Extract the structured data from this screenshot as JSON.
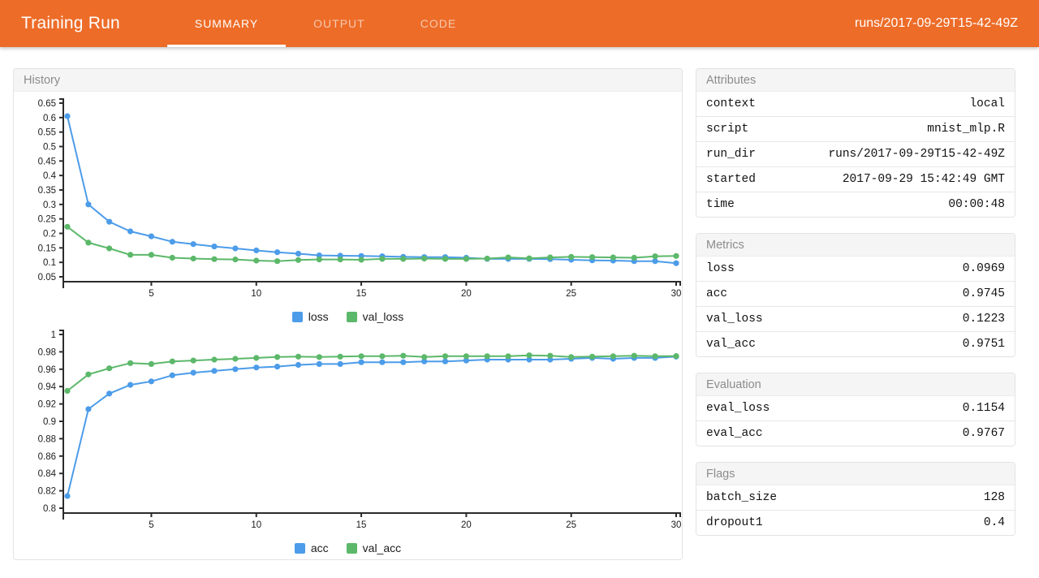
{
  "header": {
    "title": "Training Run",
    "tabs": [
      {
        "label": "SUMMARY",
        "active": true
      },
      {
        "label": "OUTPUT",
        "active": false
      },
      {
        "label": "CODE",
        "active": false
      }
    ],
    "run_label": "runs/2017-09-29T15-42-49Z",
    "accent_color": "#ED6C28"
  },
  "history": {
    "title": "History"
  },
  "chart_data": [
    {
      "type": "line",
      "x": [
        1,
        2,
        3,
        4,
        5,
        6,
        7,
        8,
        9,
        10,
        11,
        12,
        13,
        14,
        15,
        16,
        17,
        18,
        19,
        20,
        21,
        22,
        23,
        24,
        25,
        26,
        27,
        28,
        29,
        30
      ],
      "series": [
        {
          "name": "loss",
          "color": "#4C9CE9",
          "values": [
            0.605,
            0.3,
            0.24,
            0.207,
            0.19,
            0.171,
            0.163,
            0.155,
            0.148,
            0.141,
            0.135,
            0.13,
            0.124,
            0.123,
            0.122,
            0.121,
            0.119,
            0.118,
            0.118,
            0.116,
            0.112,
            0.112,
            0.112,
            0.111,
            0.109,
            0.107,
            0.106,
            0.104,
            0.104,
            0.097
          ]
        },
        {
          "name": "val_loss",
          "color": "#5CB86A",
          "values": [
            0.223,
            0.168,
            0.148,
            0.126,
            0.126,
            0.116,
            0.113,
            0.111,
            0.11,
            0.106,
            0.104,
            0.108,
            0.11,
            0.11,
            0.109,
            0.112,
            0.112,
            0.113,
            0.112,
            0.112,
            0.113,
            0.117,
            0.114,
            0.117,
            0.119,
            0.118,
            0.117,
            0.116,
            0.121,
            0.122
          ]
        }
      ],
      "title": "",
      "xlabel": "",
      "ylabel": "",
      "xlim": [
        1,
        30
      ],
      "ylim": [
        0.05,
        0.65
      ],
      "yticks": [
        0.05,
        0.1,
        0.15,
        0.2,
        0.25,
        0.3,
        0.35,
        0.4,
        0.45,
        0.5,
        0.55,
        0.6,
        0.65
      ],
      "xticks": [
        5,
        10,
        15,
        20,
        25,
        30
      ],
      "grid": false,
      "legend_position": "bottom"
    },
    {
      "type": "line",
      "x": [
        1,
        2,
        3,
        4,
        5,
        6,
        7,
        8,
        9,
        10,
        11,
        12,
        13,
        14,
        15,
        16,
        17,
        18,
        19,
        20,
        21,
        22,
        23,
        24,
        25,
        26,
        27,
        28,
        29,
        30
      ],
      "series": [
        {
          "name": "acc",
          "color": "#4C9CE9",
          "values": [
            0.814,
            0.914,
            0.932,
            0.942,
            0.946,
            0.953,
            0.956,
            0.958,
            0.96,
            0.962,
            0.963,
            0.965,
            0.966,
            0.966,
            0.968,
            0.968,
            0.968,
            0.969,
            0.969,
            0.97,
            0.971,
            0.971,
            0.971,
            0.971,
            0.972,
            0.973,
            0.972,
            0.973,
            0.973,
            0.9745
          ]
        },
        {
          "name": "val_acc",
          "color": "#5CB86A",
          "values": [
            0.935,
            0.954,
            0.961,
            0.967,
            0.966,
            0.969,
            0.97,
            0.971,
            0.972,
            0.973,
            0.974,
            0.9745,
            0.974,
            0.9745,
            0.975,
            0.975,
            0.9755,
            0.974,
            0.975,
            0.975,
            0.975,
            0.975,
            0.976,
            0.9755,
            0.974,
            0.9745,
            0.975,
            0.9755,
            0.975,
            0.9751
          ]
        }
      ],
      "title": "",
      "xlabel": "",
      "ylabel": "",
      "xlim": [
        1,
        30
      ],
      "ylim": [
        0.8,
        1.0
      ],
      "yticks": [
        0.8,
        0.82,
        0.84,
        0.86,
        0.88,
        0.9,
        0.92,
        0.94,
        0.96,
        0.98,
        1
      ],
      "xticks": [
        5,
        10,
        15,
        20,
        25,
        30
      ],
      "grid": false,
      "legend_position": "bottom"
    }
  ],
  "panels": [
    {
      "title": "Attributes",
      "rows": [
        {
          "key": "context",
          "value": "local"
        },
        {
          "key": "script",
          "value": "mnist_mlp.R"
        },
        {
          "key": "run_dir",
          "value": "runs/2017-09-29T15-42-49Z"
        },
        {
          "key": "started",
          "value": "2017-09-29 15:42:49 GMT"
        },
        {
          "key": "time",
          "value": "00:00:48"
        }
      ]
    },
    {
      "title": "Metrics",
      "rows": [
        {
          "key": "loss",
          "value": "0.0969"
        },
        {
          "key": "acc",
          "value": "0.9745"
        },
        {
          "key": "val_loss",
          "value": "0.1223"
        },
        {
          "key": "val_acc",
          "value": "0.9751"
        }
      ]
    },
    {
      "title": "Evaluation",
      "rows": [
        {
          "key": "eval_loss",
          "value": "0.1154"
        },
        {
          "key": "eval_acc",
          "value": "0.9767"
        }
      ]
    },
    {
      "title": "Flags",
      "rows": [
        {
          "key": "batch_size",
          "value": "128"
        },
        {
          "key": "dropout1",
          "value": "0.4"
        }
      ]
    }
  ]
}
